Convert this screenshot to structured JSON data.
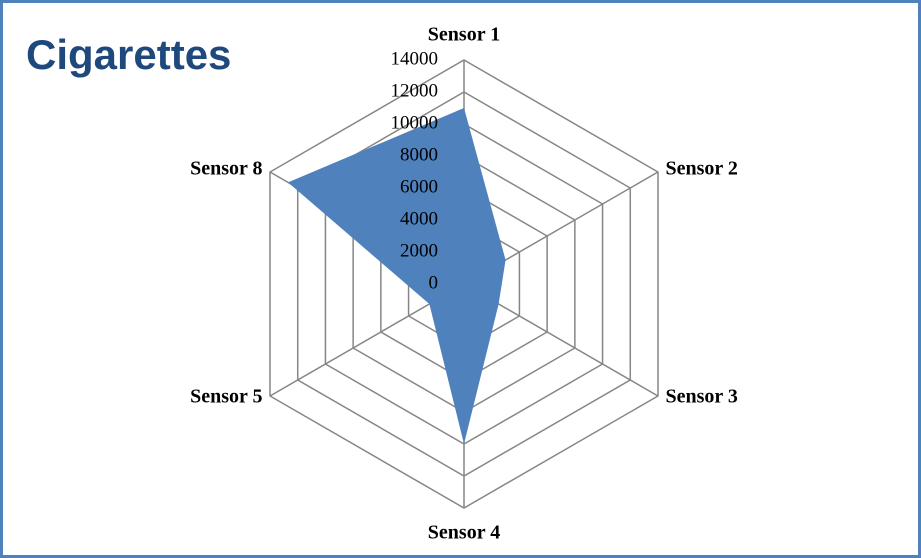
{
  "chart_data": {
    "type": "radar",
    "title": "Cigarettes",
    "categories": [
      "Sensor 1",
      "Sensor 2",
      "Sensor 3",
      "Sensor 4",
      "Sensor 5",
      "Sensor 8"
    ],
    "series": [
      {
        "name": "Cigarettes",
        "color": "#4f81bd",
        "values": [
          11000,
          3000,
          2500,
          10000,
          2500,
          12700
        ]
      }
    ],
    "ylim": [
      0,
      14000
    ],
    "yticks": [
      0,
      2000,
      4000,
      6000,
      8000,
      10000,
      12000,
      14000
    ],
    "grid": true,
    "grid_color": "#868686"
  }
}
